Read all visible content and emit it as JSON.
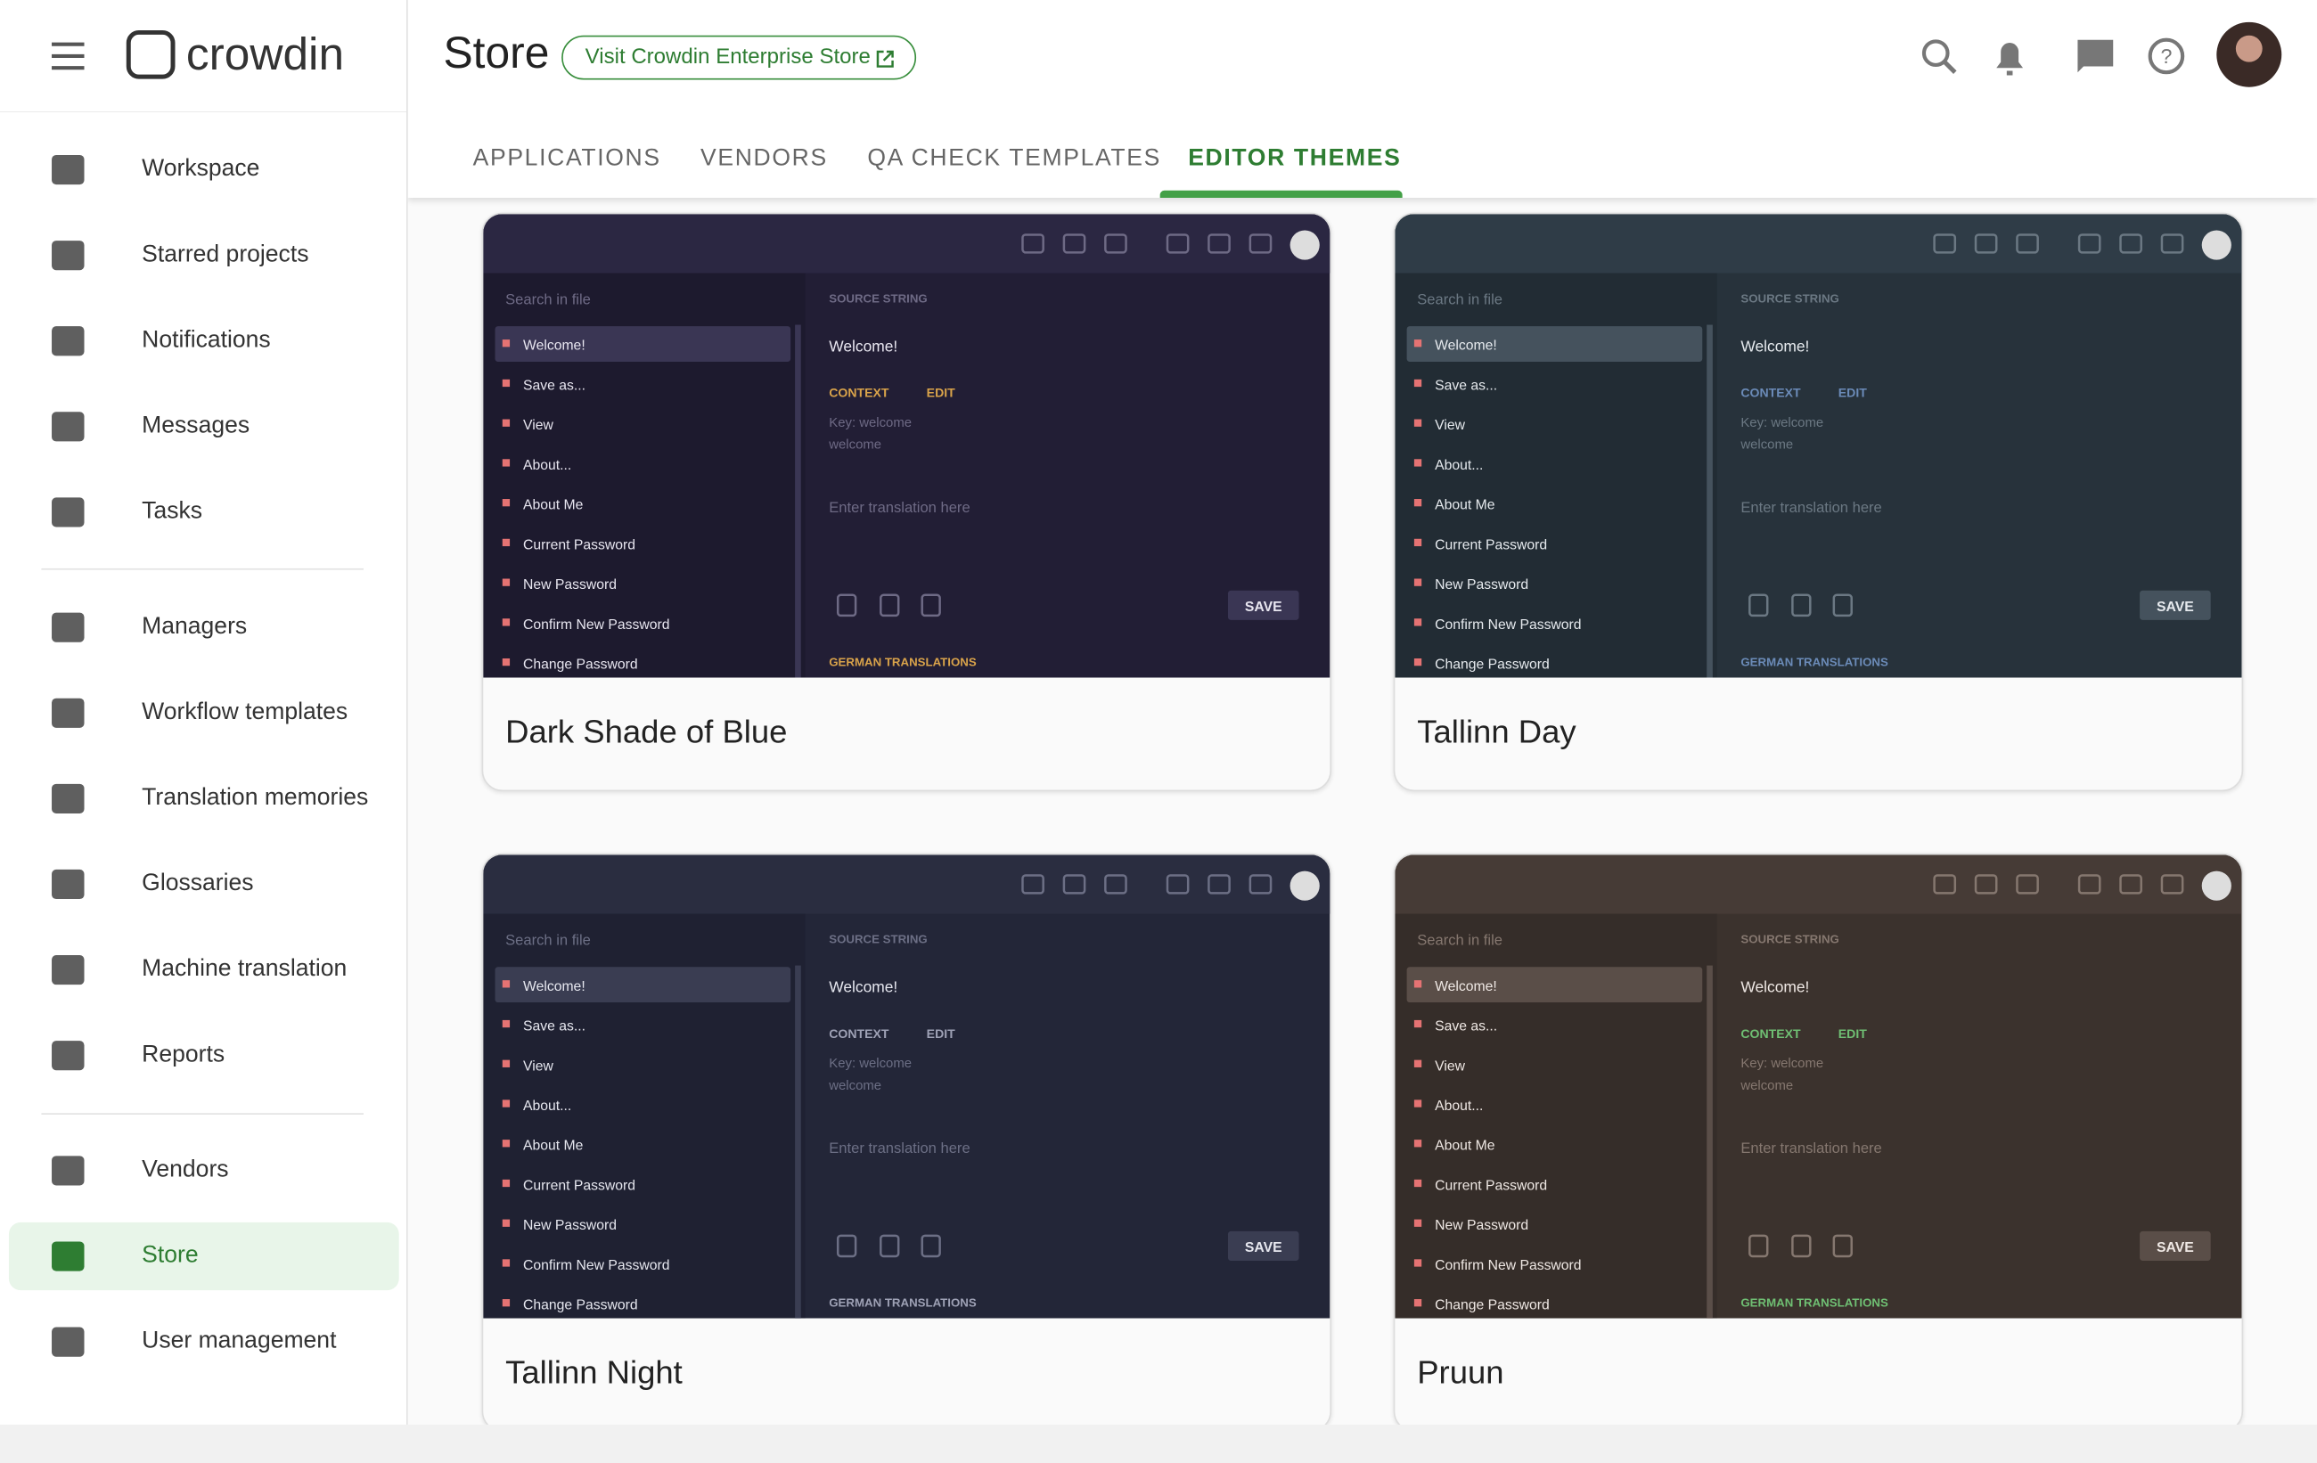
{
  "sidebar": {
    "logo": "crowdin",
    "items": [
      "Workspace",
      "Starred projects",
      "Notifications",
      "Messages",
      "Tasks",
      "Managers",
      "Workflow templates",
      "Translation memories",
      "Glossaries",
      "Machine translation",
      "Reports",
      "Vendors",
      "Store",
      "User management"
    ],
    "selected": 12
  },
  "header": {
    "title": "Store",
    "button": "Visit Crowdin Enterprise Store"
  },
  "tabs": {
    "items": [
      "APPLICATIONS",
      "VENDORS",
      "QA CHECK TEMPLATES",
      "EDITOR THEMES"
    ],
    "active": 3
  },
  "preview": {
    "search": "Search in file",
    "source_label": "SOURCE STRING",
    "strings": [
      "Welcome!",
      "Save as...",
      "View",
      "About...",
      "About Me",
      "Current Password",
      "New Password",
      "Confirm New Password",
      "Change Password"
    ],
    "source": "Welcome!",
    "context": "CONTEXT",
    "edit": "EDIT",
    "key": "Key: welcome",
    "key_value": "welcome",
    "placeholder": "Enter translation here",
    "save": "SAVE",
    "footer": "GERMAN TRANSLATIONS"
  },
  "cards": [
    {
      "name": "Dark Shade of Blue",
      "colors": {
        "bar": "#2b2742",
        "main": "#221e35",
        "panel": "#1d1a2e",
        "selected": "#3a3654",
        "text": "#e8e6f0",
        "dim": "#6e6a85",
        "accent": "#d9a34a"
      }
    },
    {
      "name": "Tallinn Day",
      "colors": {
        "bar": "#2f3c47",
        "main": "#27323b",
        "panel": "#222c34",
        "selected": "#45525d",
        "text": "#e6eaee",
        "dim": "#6b7883",
        "accent": "#6b8bb8"
      }
    },
    {
      "name": "Tallinn Night",
      "colors": {
        "bar": "#2a2d40",
        "main": "#232638",
        "panel": "#1f2132",
        "selected": "#3a3d52",
        "text": "#e6e7ef",
        "dim": "#6c6f85",
        "accent": "#9ea1b5"
      }
    },
    {
      "name": "Pruun",
      "colors": {
        "bar": "#463b36",
        "main": "#3b322d",
        "panel": "#352d29",
        "selected": "#5a4e48",
        "text": "#efe8e4",
        "dim": "#85776f",
        "accent": "#6fbf73"
      }
    }
  ]
}
